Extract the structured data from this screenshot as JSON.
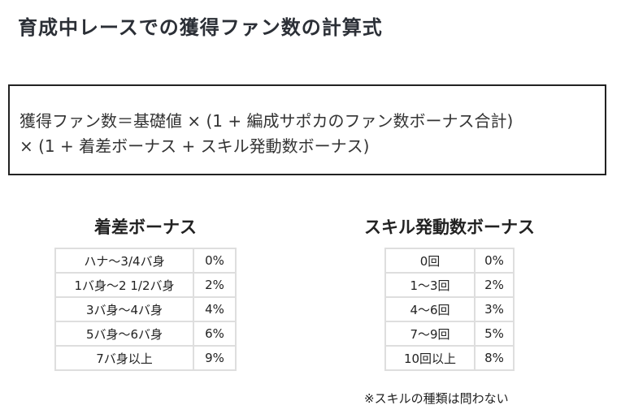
{
  "title": "育成中レースでの獲得ファン数の計算式",
  "formula": {
    "line1": "獲得ファン数＝基礎値 × (1 + 編成サポカのファン数ボーナス合計)",
    "line2": "× (1 + 着差ボーナス + スキル発動数ボーナス)"
  },
  "margin_bonus": {
    "title": "着差ボーナス",
    "rows": [
      {
        "label": "ハナ～3/4バ身",
        "value": "0%"
      },
      {
        "label": "1バ身～2 1/2バ身",
        "value": "2%"
      },
      {
        "label": "3バ身～4バ身",
        "value": "4%"
      },
      {
        "label": "5バ身～6バ身",
        "value": "6%"
      },
      {
        "label": "7バ身以上",
        "value": "9%"
      }
    ]
  },
  "skill_bonus": {
    "title": "スキル発動数ボーナス",
    "rows": [
      {
        "label": "0回",
        "value": "0%"
      },
      {
        "label": "1～3回",
        "value": "2%"
      },
      {
        "label": "4～6回",
        "value": "3%"
      },
      {
        "label": "7～9回",
        "value": "5%"
      },
      {
        "label": "10回以上",
        "value": "8%"
      }
    ],
    "note": "※スキルの種類は問わない"
  }
}
